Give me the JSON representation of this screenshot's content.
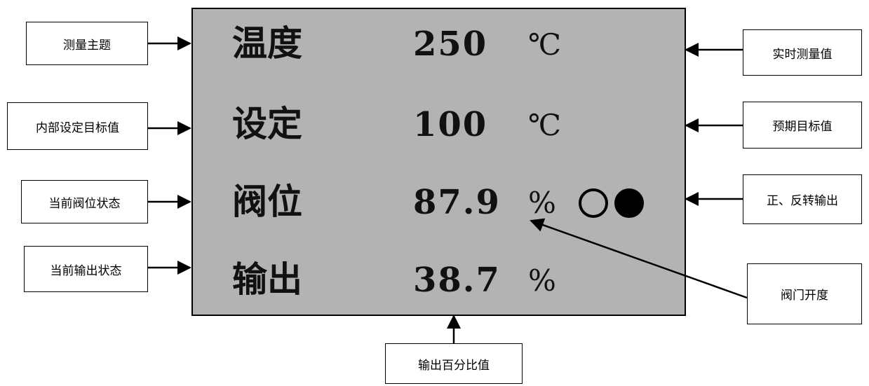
{
  "display": {
    "rows": [
      {
        "label": "温度",
        "value": "250",
        "unit": "℃"
      },
      {
        "label": "设定",
        "value": "100",
        "unit": "℃"
      },
      {
        "label": "阀位",
        "value": "87.9",
        "unit": "%"
      },
      {
        "label": "输出",
        "value": "38.7",
        "unit": "%"
      }
    ],
    "direction_indicators": [
      {
        "name": "forward",
        "state": "off"
      },
      {
        "name": "reverse",
        "state": "on"
      }
    ]
  },
  "callouts": {
    "left": [
      "测量主题",
      "内部设定目标值",
      "当前阀位状态",
      "当前输出状态"
    ],
    "right": [
      "实时测量值",
      "预期目标值",
      "正、反转输出",
      "阀门开度"
    ],
    "bottom": "输出百分比值"
  },
  "colors": {
    "panel_background": "#b3b3b3",
    "text": "#000000",
    "callout_background": "#ffffff"
  }
}
